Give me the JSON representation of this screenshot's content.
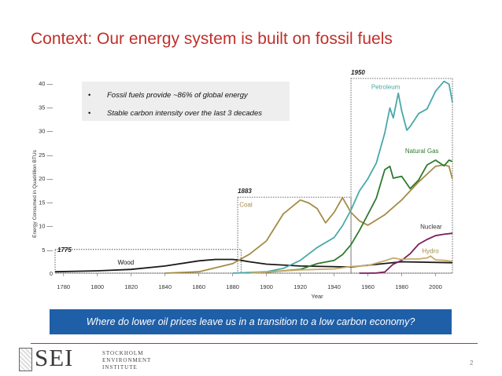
{
  "slide": {
    "title": "Context: Our energy system is built on fossil fuels",
    "bullets": [
      "Fossil fuels provide ~86% of global energy",
      "Stable carbon intensity over the last 3 decades"
    ],
    "question": "Where do lower oil prices leave us in a transition to a low carbon economy?",
    "page_number": "2",
    "logo": {
      "letters": "SEI",
      "name_lines": [
        "STOCKHOLM",
        "ENVIRONMENT",
        "INSTITUTE"
      ]
    }
  },
  "chart_data": {
    "type": "line",
    "xlabel": "Year",
    "ylabel": "Energy Consumed in Quadrillion BTUs",
    "xlim": [
      1775,
      2010
    ],
    "ylim": [
      0,
      40
    ],
    "x_ticks": [
      1780,
      1800,
      1820,
      1840,
      1860,
      1880,
      1900,
      1920,
      1940,
      1960,
      1980,
      2000
    ],
    "y_ticks": [
      0,
      5,
      10,
      15,
      20,
      25,
      30,
      35,
      40
    ],
    "y_tick_labels": [
      "0",
      "5 —",
      "10 —",
      "15 —",
      "20 —",
      "25 —",
      "30 —",
      "35 —",
      "40 —"
    ],
    "eras": [
      {
        "label": "1775",
        "start": 1775,
        "end": 1885,
        "top": 5
      },
      {
        "label": "1883",
        "start": 1883,
        "end": 1950,
        "top": 16
      },
      {
        "label": "1950",
        "start": 1950,
        "end": 2010,
        "top": 41
      }
    ],
    "series": [
      {
        "name": "Wood",
        "color": "#1a1a1a",
        "x": [
          1775,
          1800,
          1820,
          1840,
          1860,
          1870,
          1880,
          1885,
          1890,
          1900,
          1920,
          1950,
          1980,
          2010
        ],
        "values": [
          0.3,
          0.5,
          0.8,
          1.5,
          2.6,
          2.9,
          2.9,
          2.7,
          2.4,
          1.9,
          1.5,
          1.3,
          2.4,
          2.2
        ]
      },
      {
        "name": "Coal",
        "color": "#a58b45",
        "x": [
          1840,
          1860,
          1880,
          1890,
          1900,
          1910,
          1920,
          1925,
          1930,
          1935,
          1940,
          1945,
          1950,
          1955,
          1960,
          1970,
          1980,
          1990,
          2000,
          2005,
          2008,
          2010
        ],
        "values": [
          0,
          0.3,
          2.0,
          4.0,
          6.8,
          12.5,
          15.4,
          14.8,
          13.6,
          10.6,
          12.8,
          15.9,
          12.8,
          11.0,
          10.1,
          12.3,
          15.4,
          19.2,
          22.5,
          22.8,
          22.5,
          19.8
        ]
      },
      {
        "name": "Petroleum",
        "color": "#4aa8a8",
        "x": [
          1880,
          1900,
          1910,
          1920,
          1930,
          1940,
          1945,
          1950,
          1955,
          1960,
          1965,
          1970,
          1973,
          1975,
          1978,
          1980,
          1983,
          1985,
          1990,
          1995,
          2000,
          2005,
          2008,
          2010
        ],
        "values": [
          0,
          0.3,
          1.0,
          2.7,
          5.4,
          7.5,
          10.0,
          13.3,
          17.3,
          19.9,
          23.2,
          29.5,
          34.8,
          32.7,
          37.9,
          34.2,
          30.1,
          30.9,
          33.6,
          34.6,
          38.3,
          40.4,
          39.8,
          36.0
        ]
      },
      {
        "name": "Natural Gas",
        "color": "#2e7a2e",
        "x": [
          1900,
          1920,
          1930,
          1940,
          1945,
          1950,
          1955,
          1960,
          1965,
          1970,
          1973,
          1975,
          1980,
          1985,
          1990,
          1995,
          2000,
          2005,
          2008,
          2010
        ],
        "values": [
          0.2,
          0.8,
          2.0,
          2.7,
          3.9,
          6.0,
          9.0,
          12.4,
          15.8,
          21.8,
          22.5,
          20.0,
          20.4,
          17.8,
          19.6,
          22.8,
          23.8,
          22.6,
          23.8,
          23.5
        ]
      },
      {
        "name": "Nuclear",
        "color": "#7a1f5a",
        "x": [
          1955,
          1960,
          1965,
          1970,
          1975,
          1980,
          1985,
          1990,
          1995,
          2000,
          2005,
          2010
        ],
        "values": [
          0,
          0,
          0.04,
          0.24,
          1.9,
          2.7,
          4.1,
          6.1,
          7.1,
          7.9,
          8.2,
          8.4
        ]
      },
      {
        "name": "Hydro",
        "color": "#c8a96b",
        "x": [
          1890,
          1900,
          1920,
          1940,
          1950,
          1960,
          1970,
          1975,
          1980,
          1985,
          1990,
          1995,
          1997,
          2000,
          2005,
          2010
        ],
        "values": [
          0,
          0.25,
          0.7,
          0.9,
          1.4,
          1.6,
          2.6,
          3.2,
          2.9,
          3.0,
          3.0,
          3.2,
          3.6,
          2.8,
          2.7,
          2.5
        ]
      }
    ],
    "series_labels": [
      "Petroleum",
      "Coal",
      "Natural Gas",
      "Nuclear",
      "Hydro",
      "Wood"
    ]
  }
}
